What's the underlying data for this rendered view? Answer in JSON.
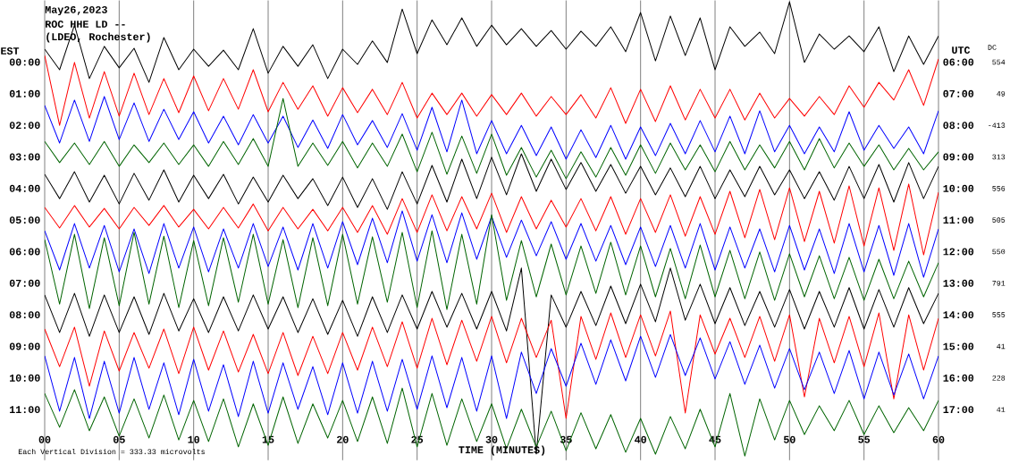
{
  "chart_data": {
    "type": "line",
    "title": "May26,2023",
    "subtitle": "ROC HHE LD --",
    "xlabel": "TIME (MINUTES)",
    "ylabel": "EST",
    "y2label": "UTC",
    "annotations": [
      "(LDEO, Rochester)",
      "Each Vertical Division =  333.33 microvolts",
      "DC",
      "554",
      "49",
      "-413",
      "313",
      "556",
      "505",
      "550",
      "791",
      "555",
      "41",
      "228",
      "41"
    ],
    "x": [
      0,
      1,
      2,
      3,
      4,
      5,
      6,
      7,
      8,
      9,
      10,
      11,
      12,
      13,
      14,
      15,
      16,
      17,
      18,
      19,
      20,
      21,
      22,
      23,
      24,
      25,
      26,
      27,
      28,
      29,
      30,
      31,
      32,
      33,
      34,
      35,
      36,
      37,
      38,
      39,
      40,
      41,
      42,
      43,
      44,
      45,
      46,
      47,
      48,
      49,
      50,
      51,
      52,
      53,
      54,
      55,
      56,
      57,
      58,
      59,
      60
    ],
    "xlim": [
      0,
      60
    ],
    "xticks": [
      {
        "value": 0,
        "label": "00"
      },
      {
        "value": 5,
        "label": "05"
      },
      10,
      15,
      20,
      25,
      30,
      35,
      40,
      45,
      50,
      55,
      60
    ],
    "ylim": [
      12.6,
      -1.95
    ],
    "yticks": [
      {
        "value": 0,
        "label": "00:00"
      },
      {
        "value": 1,
        "label": "01:00"
      },
      {
        "value": 2,
        "label": "02:00"
      },
      {
        "value": 3,
        "label": "03:00"
      },
      {
        "value": 4,
        "label": "04:00"
      },
      {
        "value": 5,
        "label": "05:00"
      },
      {
        "value": 6,
        "label": "06:00"
      },
      {
        "value": 7,
        "label": "07:00"
      },
      {
        "value": 8,
        "label": "08:00"
      },
      {
        "value": 9,
        "label": "09:00"
      },
      {
        "value": 10,
        "label": "10:00"
      },
      {
        "value": 11,
        "label": "11:00"
      }
    ],
    "y2lim": [
      18.6,
      4.05
    ],
    "y2ticks": [
      {
        "value": 6,
        "label": "06:00"
      },
      {
        "value": 7,
        "label": "07:00"
      },
      {
        "value": 8,
        "label": "08:00"
      },
      {
        "value": 9,
        "label": "09:00"
      },
      {
        "value": 10,
        "label": "10:00"
      },
      {
        "value": 11,
        "label": "11:00"
      },
      {
        "value": 12,
        "label": "12:00"
      },
      {
        "value": 13,
        "label": "13:00"
      },
      {
        "value": 14,
        "label": "14:00"
      },
      {
        "value": 15,
        "label": "15:00"
      },
      {
        "value": 16,
        "label": "16:00"
      },
      {
        "value": 17,
        "label": "17:00"
      }
    ],
    "grid": "x",
    "series": [
      {
        "color": "#000000",
        "values": [
          -0.41,
          0.24,
          -1.17,
          0.52,
          -0.5,
          0.18,
          -0.44,
          0.64,
          -0.78,
          0.24,
          -0.41,
          0.13,
          -0.38,
          0.24,
          -1.06,
          0.35,
          -0.5,
          0.13,
          -0.55,
          0.52,
          -0.41,
          0.07,
          -0.67,
          0.01,
          -1.68,
          -0.27,
          -1.34,
          -0.55,
          -1.4,
          -0.5,
          -1.17,
          -0.55,
          -1.06,
          -0.5,
          -1.0,
          -0.41,
          -0.98,
          -0.5,
          -1.12,
          -0.33,
          -1.57,
          -0.04,
          -1.46,
          -0.21,
          -1.4,
          0.24,
          -1.12,
          -0.5,
          -0.95,
          -0.27,
          -1.91,
          0.01,
          -0.89,
          -0.41,
          -0.83,
          -0.33,
          -1.12,
          0.3,
          -0.83,
          0.07,
          -0.83
        ]
      },
      {
        "color": "#ff0000",
        "values": [
          -0.21,
          2.0,
          0.01,
          1.77,
          0.3,
          1.71,
          0.35,
          1.66,
          0.52,
          1.6,
          0.44,
          1.54,
          0.52,
          1.49,
          0.24,
          1.57,
          0.64,
          1.49,
          0.75,
          1.71,
          0.81,
          1.6,
          0.86,
          1.66,
          0.64,
          1.77,
          0.98,
          1.66,
          0.98,
          1.71,
          1.03,
          1.66,
          0.98,
          1.71,
          1.09,
          1.66,
          1.03,
          1.77,
          0.81,
          1.94,
          0.86,
          1.88,
          0.75,
          1.83,
          0.86,
          1.77,
          0.86,
          1.83,
          0.98,
          1.77,
          1.15,
          1.71,
          1.09,
          1.66,
          0.75,
          1.43,
          0.64,
          1.2,
          0.24,
          1.37,
          -0.1
        ]
      },
      {
        "color": "#0000ff",
        "values": [
          1.37,
          2.56,
          1.2,
          2.51,
          1.09,
          2.45,
          1.29,
          2.51,
          1.49,
          2.45,
          1.57,
          2.56,
          1.71,
          2.62,
          1.66,
          2.56,
          1.71,
          2.7,
          1.83,
          2.73,
          1.66,
          2.62,
          1.85,
          2.7,
          1.63,
          2.79,
          1.43,
          2.84,
          1.2,
          2.9,
          1.85,
          2.9,
          2.0,
          2.96,
          2.05,
          3.07,
          2.14,
          3.02,
          2.0,
          3.07,
          2.05,
          2.96,
          1.94,
          2.9,
          1.85,
          2.84,
          1.71,
          2.9,
          1.54,
          2.84,
          2.0,
          2.9,
          2.05,
          2.84,
          1.57,
          2.79,
          2.0,
          2.73,
          2.05,
          2.9,
          1.54
        ]
      },
      {
        "color": "#006400",
        "values": [
          2.51,
          3.18,
          2.56,
          3.24,
          2.51,
          3.3,
          2.62,
          3.18,
          2.56,
          3.24,
          2.62,
          3.3,
          2.51,
          3.24,
          2.42,
          3.3,
          1.15,
          3.3,
          2.56,
          3.27,
          2.51,
          3.35,
          2.56,
          3.3,
          2.28,
          3.47,
          2.22,
          3.55,
          2.34,
          3.52,
          2.28,
          3.58,
          2.7,
          3.64,
          2.79,
          3.69,
          2.84,
          3.64,
          2.7,
          3.58,
          2.62,
          3.52,
          2.56,
          3.41,
          2.62,
          3.47,
          2.51,
          3.41,
          2.62,
          3.35,
          2.51,
          3.41,
          2.42,
          3.35,
          2.56,
          3.3,
          2.62,
          3.41,
          2.73,
          3.41,
          2.84
        ]
      },
      {
        "color": "#000000",
        "values": [
          3.55,
          4.32,
          3.47,
          4.43,
          3.58,
          4.49,
          3.52,
          4.37,
          3.41,
          4.43,
          3.58,
          4.32,
          3.55,
          4.49,
          3.64,
          4.43,
          3.58,
          4.32,
          3.69,
          4.54,
          3.64,
          4.6,
          3.69,
          4.66,
          3.47,
          4.49,
          3.27,
          4.43,
          3.07,
          4.32,
          3.01,
          4.2,
          2.9,
          4.09,
          3.07,
          4.03,
          3.18,
          4.09,
          3.24,
          4.15,
          3.3,
          4.2,
          3.35,
          4.26,
          3.3,
          4.32,
          3.41,
          4.26,
          3.3,
          4.2,
          3.41,
          4.32,
          3.47,
          4.37,
          3.3,
          4.32,
          3.24,
          4.43,
          3.18,
          4.32,
          3.3
        ]
      },
      {
        "color": "#ff0000",
        "values": [
          4.6,
          5.25,
          4.54,
          5.22,
          4.63,
          5.28,
          4.6,
          5.17,
          4.54,
          5.22,
          4.66,
          5.28,
          4.6,
          5.25,
          4.49,
          5.34,
          4.6,
          5.28,
          4.66,
          5.34,
          4.6,
          5.39,
          4.54,
          5.45,
          4.32,
          5.39,
          4.2,
          5.34,
          4.26,
          5.28,
          4.15,
          5.39,
          4.26,
          5.28,
          4.37,
          5.22,
          4.32,
          5.34,
          4.26,
          5.45,
          4.32,
          5.39,
          4.2,
          5.51,
          4.26,
          5.45,
          4.09,
          5.56,
          4.03,
          5.62,
          3.98,
          5.68,
          4.09,
          5.73,
          3.92,
          5.82,
          3.98,
          5.96,
          3.86,
          6.1,
          4.12
        ]
      },
      {
        "color": "#0000ff",
        "values": [
          5.34,
          6.58,
          5.11,
          6.52,
          5.17,
          6.64,
          5.28,
          6.69,
          5.11,
          6.52,
          5.22,
          6.64,
          5.28,
          6.52,
          5.11,
          6.47,
          5.22,
          6.58,
          5.11,
          6.52,
          5.05,
          6.41,
          4.94,
          6.35,
          4.71,
          6.3,
          4.83,
          6.35,
          4.77,
          6.24,
          4.88,
          6.18,
          5.0,
          6.13,
          5.05,
          6.24,
          5.11,
          6.3,
          5.17,
          6.41,
          5.22,
          6.47,
          5.17,
          6.52,
          5.11,
          6.58,
          5.22,
          6.52,
          5.28,
          6.64,
          5.17,
          6.58,
          5.28,
          6.69,
          5.11,
          6.64,
          5.17,
          6.75,
          5.11,
          6.81,
          5.28
        ]
      },
      {
        "color": "#006400",
        "values": [
          5.62,
          7.66,
          5.45,
          7.8,
          5.56,
          7.71,
          5.39,
          7.66,
          5.51,
          7.77,
          5.65,
          7.71,
          5.56,
          7.6,
          5.45,
          7.66,
          5.62,
          7.77,
          5.56,
          7.71,
          5.45,
          7.66,
          5.53,
          7.6,
          5.39,
          7.77,
          5.34,
          7.83,
          5.45,
          7.66,
          4.83,
          7.54,
          5.65,
          7.43,
          5.76,
          7.37,
          5.82,
          7.32,
          5.7,
          7.37,
          5.82,
          7.43,
          5.9,
          7.49,
          5.79,
          7.43,
          5.96,
          7.49,
          6.01,
          7.54,
          6.07,
          7.43,
          6.13,
          7.49,
          6.18,
          7.54,
          6.24,
          7.49,
          6.3,
          7.43,
          6.35
        ]
      },
      {
        "color": "#000000",
        "values": [
          7.37,
          8.56,
          7.32,
          8.68,
          7.37,
          8.56,
          7.43,
          8.62,
          7.32,
          8.51,
          7.49,
          8.56,
          7.43,
          8.51,
          7.37,
          8.45,
          7.43,
          8.56,
          7.49,
          8.62,
          7.54,
          8.68,
          7.43,
          8.56,
          7.37,
          8.45,
          7.26,
          8.39,
          7.32,
          8.45,
          7.26,
          8.51,
          6.52,
          12.41,
          7.37,
          8.39,
          7.26,
          8.34,
          7.09,
          8.28,
          7.03,
          8.22,
          6.52,
          8.17,
          7.03,
          8.28,
          7.14,
          8.34,
          7.26,
          8.39,
          7.2,
          8.45,
          7.26,
          8.39,
          7.14,
          8.45,
          7.2,
          8.39,
          7.14,
          8.28,
          7.32
        ]
      },
      {
        "color": "#ff0000",
        "values": [
          8.45,
          9.64,
          8.39,
          10.26,
          8.51,
          9.78,
          8.56,
          9.69,
          8.45,
          9.86,
          8.39,
          9.75,
          8.51,
          9.81,
          8.62,
          9.86,
          8.56,
          9.92,
          8.68,
          9.86,
          8.56,
          9.75,
          8.39,
          9.64,
          8.22,
          9.69,
          8.11,
          9.58,
          8.17,
          9.47,
          8.05,
          9.52,
          8.11,
          9.35,
          8.17,
          11.28,
          8.05,
          9.41,
          7.94,
          9.35,
          8.0,
          9.3,
          7.88,
          11.11,
          8.0,
          9.24,
          8.11,
          9.35,
          8.05,
          9.47,
          8.0,
          10.6,
          8.11,
          9.52,
          8.05,
          9.64,
          7.94,
          10.66,
          8.0,
          9.75,
          8.11
        ]
      },
      {
        "color": "#0000ff",
        "values": [
          9.3,
          11.05,
          9.35,
          11.28,
          9.47,
          11.11,
          9.35,
          10.99,
          9.52,
          11.16,
          9.41,
          11.05,
          9.58,
          11.22,
          9.47,
          11.11,
          9.52,
          10.99,
          9.64,
          11.16,
          9.52,
          11.11,
          9.47,
          11.05,
          9.41,
          10.99,
          9.3,
          10.94,
          9.35,
          11.05,
          9.3,
          11.28,
          9.18,
          10.49,
          9.07,
          10.26,
          8.9,
          10.2,
          8.79,
          10.09,
          8.68,
          9.98,
          8.62,
          9.92,
          8.73,
          10.03,
          8.85,
          10.2,
          8.96,
          10.32,
          9.07,
          10.37,
          9.18,
          10.49,
          9.13,
          10.66,
          9.18,
          10.54,
          9.24,
          10.66,
          9.3
        ]
      },
      {
        "color": "#006400",
        "values": [
          10.49,
          11.56,
          10.37,
          11.67,
          10.6,
          11.84,
          10.66,
          11.9,
          10.54,
          11.96,
          10.71,
          12.01,
          10.66,
          12.18,
          10.82,
          12.13,
          10.6,
          12.07,
          10.82,
          11.9,
          10.71,
          12.01,
          10.6,
          12.07,
          10.32,
          12.18,
          10.49,
          12.13,
          10.66,
          12.01,
          10.82,
          12.24,
          10.99,
          12.18,
          11.05,
          12.3,
          11.1,
          12.24,
          11.16,
          12.35,
          11.28,
          12.41,
          11.22,
          12.24,
          10.99,
          12.18,
          10.49,
          12.47,
          10.66,
          11.96,
          10.71,
          11.79,
          10.88,
          11.67,
          10.71,
          11.79,
          10.88,
          11.73,
          10.94,
          11.67,
          10.71
        ]
      }
    ]
  }
}
